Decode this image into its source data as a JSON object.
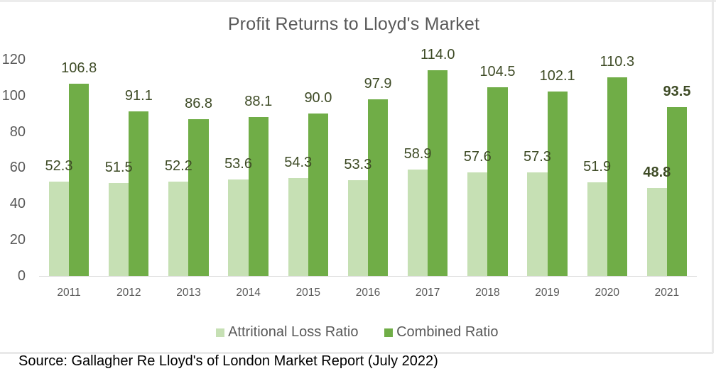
{
  "chart_data": {
    "type": "bar",
    "title": "Profit Returns to Lloyd's Market",
    "categories": [
      "2011",
      "2012",
      "2013",
      "2014",
      "2015",
      "2016",
      "2017",
      "2018",
      "2019",
      "2020",
      "2021"
    ],
    "series": [
      {
        "name": "Attritional Loss Ratio",
        "color": "#c6e0b4",
        "values": [
          52.3,
          51.5,
          52.2,
          53.6,
          54.3,
          53.3,
          58.9,
          57.6,
          57.3,
          51.9,
          48.8
        ]
      },
      {
        "name": "Combined Ratio",
        "color": "#70ad47",
        "values": [
          106.8,
          91.1,
          86.8,
          88.1,
          90.0,
          97.9,
          114.0,
          104.5,
          102.1,
          110.3,
          93.5
        ]
      }
    ],
    "ylim": [
      0,
      120
    ],
    "yticks": [
      0,
      20,
      40,
      60,
      80,
      100,
      120
    ],
    "grid": false,
    "legend_position": "bottom",
    "label_decimals": 1,
    "emphasized_category_index": 10,
    "colors": {
      "title_text": "#595959",
      "axis_text": "#595959",
      "legend_text": "#595959",
      "data_label_text": "#3e4b26",
      "axis_line": "#dcdcdc"
    }
  },
  "source_note": "Source: Gallagher Re Lloyd's of London Market Report (July 2022)"
}
